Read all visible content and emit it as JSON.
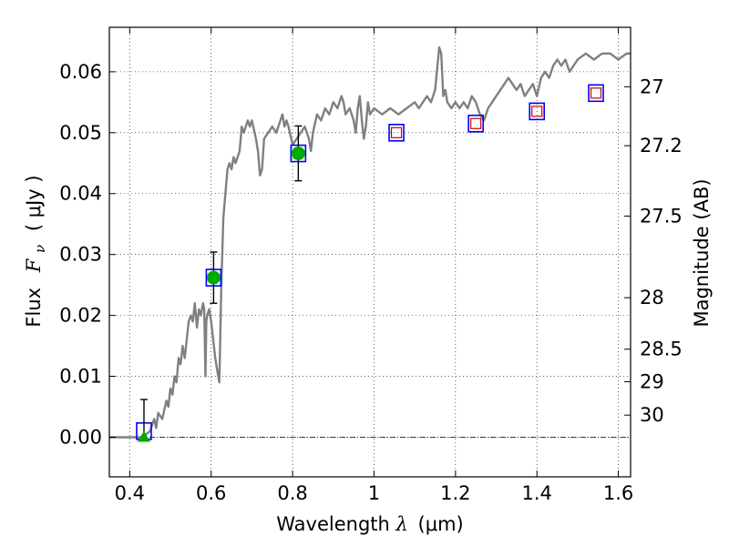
{
  "chart_data": {
    "type": "scatter",
    "xlabel": {
      "text": "Wavelength",
      "symbol": "λ",
      "unit": "(μm)"
    },
    "ylabel": {
      "text": "Flux",
      "symbol": "F",
      "subscript": "ν",
      "unit": "( μJy )"
    },
    "ylabel_right": "Magnitude (AB)",
    "xlim": [
      0.35,
      1.63
    ],
    "ylim": [
      -0.0065,
      0.0673
    ],
    "grid": true,
    "x_ticks": [
      0.4,
      0.6,
      0.8,
      1.0,
      1.2,
      1.4,
      1.6
    ],
    "x_tick_labels": [
      "0.4",
      "0.6",
      "0.8",
      "1",
      "1.2",
      "1.4",
      "1.6"
    ],
    "y_ticks": [
      0.0,
      0.01,
      0.02,
      0.03,
      0.04,
      0.05,
      0.06
    ],
    "y_tick_labels": [
      "0.00",
      "0.01",
      "0.02",
      "0.03",
      "0.04",
      "0.05",
      "0.06"
    ],
    "mag_ticks": [
      {
        "label": "27",
        "mag": 27.0
      },
      {
        "label": "27.2",
        "mag": 27.2
      },
      {
        "label": "27.5",
        "mag": 27.5
      },
      {
        "label": "28",
        "mag": 28.0
      },
      {
        "label": "28.5",
        "mag": 28.5
      },
      {
        "label": "29",
        "mag": 29.0
      },
      {
        "label": "30",
        "mag": 30.0
      }
    ],
    "colors": {
      "spectrum": "#808080",
      "observed": "#00aa00",
      "model_box": "#0000ff",
      "model_inner": "#cc0000",
      "errorbar": "#000000"
    },
    "series": [
      {
        "kind": "line",
        "points": [
          [
            0.35,
            0.0
          ],
          [
            0.43,
            0.0
          ],
          [
            0.45,
            0.001
          ],
          [
            0.46,
            0.003
          ],
          [
            0.465,
            0.0015
          ],
          [
            0.47,
            0.004
          ],
          [
            0.48,
            0.003
          ],
          [
            0.49,
            0.006
          ],
          [
            0.495,
            0.005
          ],
          [
            0.5,
            0.008
          ],
          [
            0.505,
            0.007
          ],
          [
            0.51,
            0.01
          ],
          [
            0.515,
            0.009
          ],
          [
            0.52,
            0.013
          ],
          [
            0.525,
            0.012
          ],
          [
            0.53,
            0.015
          ],
          [
            0.535,
            0.013
          ],
          [
            0.54,
            0.016
          ],
          [
            0.545,
            0.019
          ],
          [
            0.55,
            0.02
          ],
          [
            0.555,
            0.019
          ],
          [
            0.56,
            0.022
          ],
          [
            0.565,
            0.018
          ],
          [
            0.57,
            0.021
          ],
          [
            0.575,
            0.02
          ],
          [
            0.58,
            0.022
          ],
          [
            0.583,
            0.021
          ],
          [
            0.586,
            0.01
          ],
          [
            0.588,
            0.019
          ],
          [
            0.59,
            0.02
          ],
          [
            0.595,
            0.021
          ],
          [
            0.6,
            0.019
          ],
          [
            0.605,
            0.016
          ],
          [
            0.61,
            0.013
          ],
          [
            0.615,
            0.011
          ],
          [
            0.62,
            0.009
          ],
          [
            0.625,
            0.025
          ],
          [
            0.63,
            0.036
          ],
          [
            0.64,
            0.044
          ],
          [
            0.645,
            0.045
          ],
          [
            0.65,
            0.044
          ],
          [
            0.655,
            0.046
          ],
          [
            0.66,
            0.045
          ],
          [
            0.67,
            0.047
          ],
          [
            0.675,
            0.051
          ],
          [
            0.68,
            0.05
          ],
          [
            0.69,
            0.052
          ],
          [
            0.695,
            0.051
          ],
          [
            0.7,
            0.052
          ],
          [
            0.71,
            0.049
          ],
          [
            0.715,
            0.047
          ],
          [
            0.72,
            0.043
          ],
          [
            0.725,
            0.044
          ],
          [
            0.73,
            0.049
          ],
          [
            0.74,
            0.05
          ],
          [
            0.75,
            0.051
          ],
          [
            0.76,
            0.05
          ],
          [
            0.77,
            0.052
          ],
          [
            0.775,
            0.053
          ],
          [
            0.78,
            0.051
          ],
          [
            0.785,
            0.052
          ],
          [
            0.79,
            0.051
          ],
          [
            0.8,
            0.048
          ],
          [
            0.81,
            0.049
          ],
          [
            0.82,
            0.05
          ],
          [
            0.83,
            0.051
          ],
          [
            0.84,
            0.049
          ],
          [
            0.845,
            0.047
          ],
          [
            0.85,
            0.05
          ],
          [
            0.86,
            0.053
          ],
          [
            0.87,
            0.052
          ],
          [
            0.88,
            0.054
          ],
          [
            0.89,
            0.053
          ],
          [
            0.9,
            0.055
          ],
          [
            0.91,
            0.054
          ],
          [
            0.92,
            0.056
          ],
          [
            0.925,
            0.055
          ],
          [
            0.93,
            0.053
          ],
          [
            0.94,
            0.054
          ],
          [
            0.95,
            0.052
          ],
          [
            0.955,
            0.05
          ],
          [
            0.96,
            0.054
          ],
          [
            0.965,
            0.056
          ],
          [
            0.97,
            0.052
          ],
          [
            0.975,
            0.049
          ],
          [
            0.98,
            0.051
          ],
          [
            0.985,
            0.055
          ],
          [
            0.99,
            0.053
          ],
          [
            1.0,
            0.054
          ],
          [
            1.02,
            0.053
          ],
          [
            1.04,
            0.054
          ],
          [
            1.06,
            0.053
          ],
          [
            1.08,
            0.054
          ],
          [
            1.1,
            0.055
          ],
          [
            1.11,
            0.054
          ],
          [
            1.12,
            0.055
          ],
          [
            1.13,
            0.056
          ],
          [
            1.14,
            0.055
          ],
          [
            1.15,
            0.057
          ],
          [
            1.16,
            0.064
          ],
          [
            1.165,
            0.063
          ],
          [
            1.17,
            0.056
          ],
          [
            1.175,
            0.057
          ],
          [
            1.18,
            0.055
          ],
          [
            1.19,
            0.054
          ],
          [
            1.2,
            0.055
          ],
          [
            1.21,
            0.054
          ],
          [
            1.22,
            0.055
          ],
          [
            1.23,
            0.054
          ],
          [
            1.24,
            0.056
          ],
          [
            1.25,
            0.055
          ],
          [
            1.26,
            0.053
          ],
          [
            1.27,
            0.052
          ],
          [
            1.28,
            0.054
          ],
          [
            1.29,
            0.055
          ],
          [
            1.3,
            0.056
          ],
          [
            1.31,
            0.057
          ],
          [
            1.32,
            0.058
          ],
          [
            1.33,
            0.059
          ],
          [
            1.34,
            0.058
          ],
          [
            1.35,
            0.057
          ],
          [
            1.36,
            0.058
          ],
          [
            1.37,
            0.056
          ],
          [
            1.38,
            0.057
          ],
          [
            1.39,
            0.058
          ],
          [
            1.4,
            0.056
          ],
          [
            1.41,
            0.059
          ],
          [
            1.42,
            0.06
          ],
          [
            1.43,
            0.059
          ],
          [
            1.44,
            0.061
          ],
          [
            1.45,
            0.062
          ],
          [
            1.46,
            0.061
          ],
          [
            1.47,
            0.062
          ],
          [
            1.48,
            0.06
          ],
          [
            1.49,
            0.061
          ],
          [
            1.5,
            0.062
          ],
          [
            1.52,
            0.063
          ],
          [
            1.54,
            0.062
          ],
          [
            1.56,
            0.063
          ],
          [
            1.58,
            0.063
          ],
          [
            1.6,
            0.062
          ],
          [
            1.62,
            0.063
          ],
          [
            1.63,
            0.063
          ]
        ]
      },
      {
        "kind": "model",
        "points": [
          {
            "x": 0.435,
            "y": 0.001
          },
          {
            "x": 0.606,
            "y": 0.0262
          },
          {
            "x": 0.814,
            "y": 0.0466
          },
          {
            "x": 1.055,
            "y": 0.05
          },
          {
            "x": 1.25,
            "y": 0.0515
          },
          {
            "x": 1.4,
            "y": 0.0535
          },
          {
            "x": 1.545,
            "y": 0.0565
          }
        ]
      },
      {
        "kind": "observed",
        "points": [
          {
            "x": 0.606,
            "y": 0.0262,
            "err": 0.0042
          },
          {
            "x": 0.814,
            "y": 0.0466,
            "err": 0.0045
          }
        ]
      },
      {
        "kind": "upper_limit",
        "points": [
          {
            "x": 0.435,
            "y": 0.0,
            "err_top": 0.0062
          }
        ]
      }
    ]
  }
}
